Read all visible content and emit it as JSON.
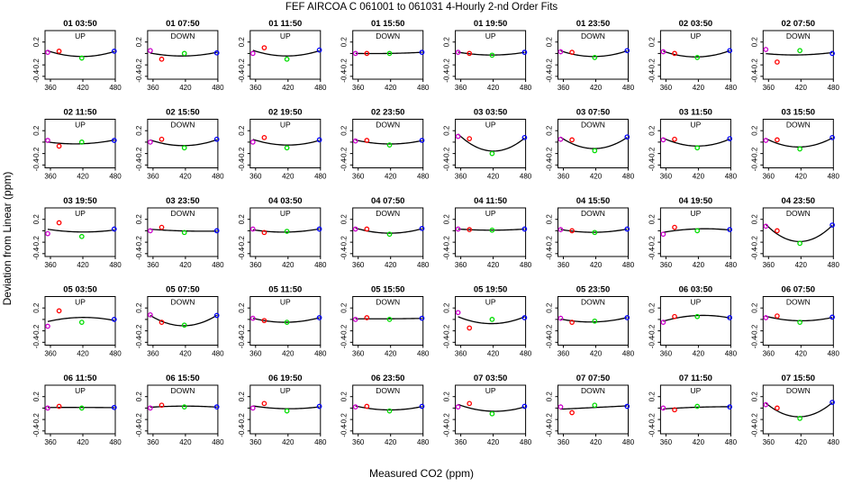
{
  "figure": {
    "title": "FEF   AIRCOA C   061001 to 061031   4-Hourly 2-nd Order Fits",
    "xlabel": "Measured CO2 (ppm)",
    "ylabel": "Deviation from Linear (ppm)"
  },
  "chart_data": {
    "type": "scatter",
    "grid": false,
    "xlim": [
      350,
      480
    ],
    "ylim": [
      -0.45,
      0.4
    ],
    "xticks": [
      360,
      420,
      480
    ],
    "yticks": [
      0.2,
      0.0,
      -0.2,
      -0.4
    ],
    "xtick_labels": [
      "360",
      "420",
      "480"
    ],
    "ytick_labels": [
      "0.2",
      "",
      "-0.2",
      "-0.4"
    ],
    "point_x": [
      355,
      376,
      418,
      478
    ],
    "point_colors": [
      "#cc00cc",
      "#ff0000",
      "#00dd00",
      "#0000ff"
    ],
    "curve_color": "#000000",
    "panels": [
      {
        "title": "01 03:50",
        "dir": "UP",
        "y": [
          0.02,
          0.04,
          -0.08,
          0.04
        ]
      },
      {
        "title": "01 07:50",
        "dir": "DOWN",
        "y": [
          0.05,
          -0.1,
          0.0,
          0.01
        ]
      },
      {
        "title": "01 11:50",
        "dir": "UP",
        "y": [
          0.0,
          0.1,
          -0.1,
          0.06
        ]
      },
      {
        "title": "01 15:50",
        "dir": "DOWN",
        "y": [
          0.0,
          0.0,
          0.0,
          0.02
        ]
      },
      {
        "title": "01 19:50",
        "dir": "UP",
        "y": [
          0.02,
          0.0,
          -0.03,
          0.02
        ]
      },
      {
        "title": "01 23:50",
        "dir": "DOWN",
        "y": [
          0.03,
          0.02,
          -0.07,
          0.05
        ]
      },
      {
        "title": "02 03:50",
        "dir": "UP",
        "y": [
          0.03,
          0.0,
          -0.07,
          0.05
        ]
      },
      {
        "title": "02 07:50",
        "dir": "DOWN",
        "y": [
          0.07,
          -0.15,
          0.05,
          0.0
        ]
      },
      {
        "title": "02 11:50",
        "dir": "UP",
        "y": [
          0.03,
          -0.07,
          0.0,
          0.03
        ]
      },
      {
        "title": "02 15:50",
        "dir": "DOWN",
        "y": [
          0.0,
          0.05,
          -0.1,
          0.05
        ]
      },
      {
        "title": "02 19:50",
        "dir": "UP",
        "y": [
          0.0,
          0.08,
          -0.1,
          0.04
        ]
      },
      {
        "title": "02 23:50",
        "dir": "DOWN",
        "y": [
          0.02,
          0.03,
          -0.05,
          0.03
        ]
      },
      {
        "title": "03 03:50",
        "dir": "UP",
        "y": [
          0.1,
          0.06,
          -0.2,
          0.08
        ]
      },
      {
        "title": "03 07:50",
        "dir": "DOWN",
        "y": [
          0.05,
          0.04,
          -0.15,
          0.09
        ]
      },
      {
        "title": "03 11:50",
        "dir": "UP",
        "y": [
          0.04,
          0.05,
          -0.1,
          0.06
        ]
      },
      {
        "title": "03 15:50",
        "dir": "DOWN",
        "y": [
          0.03,
          0.04,
          -0.12,
          0.08
        ]
      },
      {
        "title": "03 19:50",
        "dir": "UP",
        "y": [
          -0.05,
          0.14,
          -0.1,
          0.03
        ]
      },
      {
        "title": "03 23:50",
        "dir": "DOWN",
        "y": [
          0.0,
          0.06,
          -0.03,
          0.0
        ]
      },
      {
        "title": "04 03:50",
        "dir": "UP",
        "y": [
          0.03,
          -0.03,
          -0.01,
          0.03
        ]
      },
      {
        "title": "04 07:50",
        "dir": "DOWN",
        "y": [
          0.03,
          0.03,
          -0.06,
          0.04
        ]
      },
      {
        "title": "04 11:50",
        "dir": "UP",
        "y": [
          0.03,
          0.02,
          0.01,
          0.03
        ]
      },
      {
        "title": "04 15:50",
        "dir": "DOWN",
        "y": [
          0.02,
          0.0,
          -0.03,
          0.03
        ]
      },
      {
        "title": "04 19:50",
        "dir": "UP",
        "y": [
          -0.06,
          0.06,
          0.0,
          0.02
        ]
      },
      {
        "title": "04 23:50",
        "dir": "DOWN",
        "y": [
          0.08,
          0.0,
          -0.22,
          0.1
        ]
      },
      {
        "title": "05 03:50",
        "dir": "UP",
        "y": [
          -0.12,
          0.15,
          -0.05,
          0.0
        ]
      },
      {
        "title": "05 07:50",
        "dir": "DOWN",
        "y": [
          0.08,
          -0.05,
          -0.1,
          0.07
        ]
      },
      {
        "title": "05 11:50",
        "dir": "UP",
        "y": [
          0.02,
          -0.02,
          -0.05,
          0.03
        ]
      },
      {
        "title": "05 15:50",
        "dir": "DOWN",
        "y": [
          0.0,
          0.03,
          0.0,
          0.02
        ]
      },
      {
        "title": "05 19:50",
        "dir": "UP",
        "y": [
          0.12,
          -0.15,
          0.0,
          0.03
        ]
      },
      {
        "title": "05 23:50",
        "dir": "DOWN",
        "y": [
          0.02,
          -0.05,
          -0.03,
          0.03
        ]
      },
      {
        "title": "06 03:50",
        "dir": "UP",
        "y": [
          -0.05,
          0.05,
          0.05,
          0.03
        ]
      },
      {
        "title": "06 07:50",
        "dir": "DOWN",
        "y": [
          0.03,
          0.06,
          -0.05,
          0.04
        ]
      },
      {
        "title": "06 11:50",
        "dir": "UP",
        "y": [
          0.0,
          0.03,
          0.0,
          0.01
        ]
      },
      {
        "title": "06 15:50",
        "dir": "DOWN",
        "y": [
          0.0,
          0.05,
          0.02,
          0.02
        ]
      },
      {
        "title": "06 19:50",
        "dir": "UP",
        "y": [
          0.0,
          0.08,
          -0.05,
          0.03
        ]
      },
      {
        "title": "06 23:50",
        "dir": "DOWN",
        "y": [
          0.02,
          0.03,
          -0.05,
          0.03
        ]
      },
      {
        "title": "07 03:50",
        "dir": "UP",
        "y": [
          0.02,
          0.08,
          -0.1,
          0.03
        ]
      },
      {
        "title": "07 07:50",
        "dir": "DOWN",
        "y": [
          0.02,
          -0.08,
          0.05,
          0.03
        ]
      },
      {
        "title": "07 11:50",
        "dir": "UP",
        "y": [
          0.0,
          -0.03,
          0.03,
          0.02
        ]
      },
      {
        "title": "07 15:50",
        "dir": "DOWN",
        "y": [
          0.06,
          0.0,
          -0.18,
          0.1
        ]
      }
    ]
  }
}
